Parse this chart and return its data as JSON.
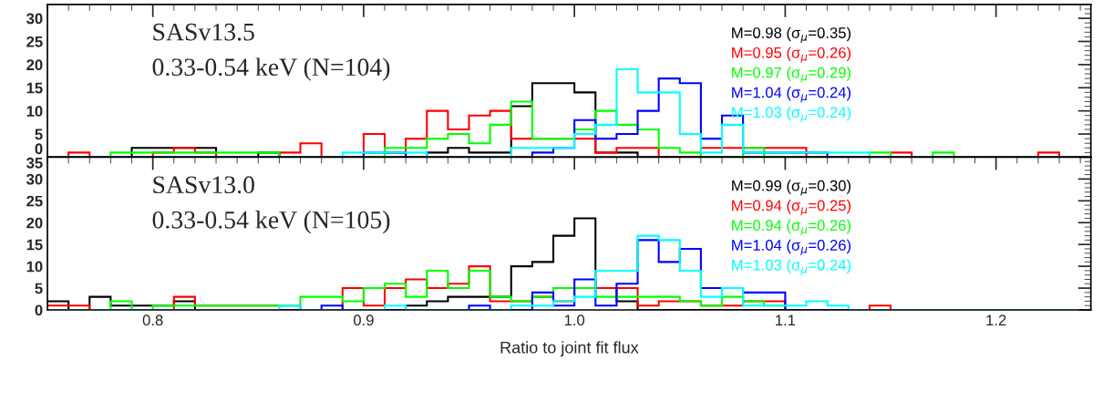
{
  "chart_data": [
    {
      "type": "histogram",
      "title": "SASv13.5",
      "subtitle": "0.33-0.54 keV (N=104)",
      "bins": [
        0.75,
        0.76,
        0.77,
        0.78,
        0.79,
        0.8,
        0.81,
        0.82,
        0.83,
        0.84,
        0.85,
        0.86,
        0.87,
        0.88,
        0.89,
        0.9,
        0.91,
        0.92,
        0.93,
        0.94,
        0.95,
        0.96,
        0.97,
        0.98,
        0.99,
        1.0,
        1.01,
        1.02,
        1.03,
        1.04,
        1.05,
        1.06,
        1.07,
        1.08,
        1.09,
        1.1,
        1.11,
        1.12,
        1.13,
        1.14,
        1.15,
        1.16,
        1.17,
        1.18,
        1.19,
        1.2,
        1.21,
        1.22,
        1.23,
        1.24
      ],
      "xlim": [
        0.75,
        1.245
      ],
      "xticks": [
        0.8,
        0.9,
        1.0,
        1.1,
        1.2
      ],
      "ylim": [
        0,
        33
      ],
      "yticks": [
        0,
        5,
        10,
        15,
        20,
        25,
        30
      ],
      "tick_labels": "y",
      "series": [
        {
          "name": "M=0.98 (σ$_{μ}$=0.35)",
          "color": "#000000",
          "values": [
            0,
            0,
            0,
            0,
            2,
            2,
            2,
            2,
            0,
            0,
            1,
            0,
            0,
            0,
            0,
            0,
            0,
            0,
            1,
            2,
            1,
            1,
            11,
            16,
            16,
            14,
            1,
            1,
            0,
            0,
            0,
            0,
            0,
            0,
            0,
            0,
            0,
            0,
            0,
            0,
            0,
            0,
            0,
            0,
            0,
            0,
            0,
            0,
            0
          ]
        },
        {
          "name": "M=0.95 (σ$_{μ}$=0.26)",
          "color": "#ff0000",
          "values": [
            0,
            1,
            0,
            0,
            0,
            1,
            2,
            1,
            0,
            0,
            0,
            1,
            3,
            0,
            0,
            5,
            1,
            4,
            10,
            6,
            9,
            10,
            4,
            4,
            4,
            4,
            1,
            2,
            2,
            0,
            0,
            2,
            2,
            2,
            2,
            2,
            0,
            0,
            0,
            0,
            1,
            0,
            0,
            0,
            0,
            0,
            0,
            1,
            0
          ]
        },
        {
          "name": "M=0.97 (σ$_{μ}$=0.29)",
          "color": "#00ff00",
          "values": [
            0,
            0,
            0,
            1,
            1,
            1,
            1,
            1,
            1,
            1,
            1,
            0,
            0,
            0,
            0,
            0,
            2,
            2,
            4,
            5,
            3,
            7,
            12,
            4,
            4,
            6,
            10,
            7,
            6,
            2,
            1,
            0,
            0,
            2,
            0,
            0,
            0,
            0,
            0,
            1,
            0,
            0,
            1,
            0,
            0,
            0,
            0,
            0,
            0
          ]
        },
        {
          "name": "M=1.04 (σ$_{μ}$=0.24)",
          "color": "#0000ff",
          "values": [
            0,
            0,
            0,
            0,
            0,
            0,
            0,
            0,
            0,
            0,
            0,
            0,
            0,
            0,
            0,
            1,
            1,
            0,
            0,
            0,
            0,
            0,
            0,
            1,
            2,
            8,
            4,
            5,
            10,
            17,
            16,
            4,
            9,
            1,
            1,
            1,
            1,
            0,
            0,
            0,
            0,
            0,
            0,
            0,
            0,
            0,
            0,
            0,
            0
          ]
        },
        {
          "name": "M=1.03 (σ$_{μ}$=0.24)",
          "color": "#00ffff",
          "values": [
            0,
            0,
            0,
            0,
            0,
            0,
            0,
            0,
            0,
            0,
            0,
            0,
            0,
            0,
            1,
            1,
            1,
            1,
            0,
            0,
            0,
            0,
            2,
            2,
            2,
            5,
            7,
            19,
            14,
            14,
            5,
            1,
            7,
            1,
            1,
            1,
            1,
            1,
            1,
            0,
            0,
            0,
            0,
            0,
            0,
            0,
            0,
            0,
            0
          ]
        }
      ]
    },
    {
      "type": "histogram",
      "title": "SASv13.0",
      "subtitle": "0.33-0.54 keV (N=105)",
      "xlabel": "Ratio to joint fit flux",
      "bins": [
        0.75,
        0.76,
        0.77,
        0.78,
        0.79,
        0.8,
        0.81,
        0.82,
        0.83,
        0.84,
        0.85,
        0.86,
        0.87,
        0.88,
        0.89,
        0.9,
        0.91,
        0.92,
        0.93,
        0.94,
        0.95,
        0.96,
        0.97,
        0.98,
        0.99,
        1.0,
        1.01,
        1.02,
        1.03,
        1.04,
        1.05,
        1.06,
        1.07,
        1.08,
        1.09,
        1.1,
        1.11,
        1.12,
        1.13,
        1.14,
        1.15,
        1.16,
        1.17,
        1.18,
        1.19,
        1.2,
        1.21,
        1.22,
        1.23,
        1.24
      ],
      "xlim": [
        0.75,
        1.245
      ],
      "xticks": [
        0.8,
        0.9,
        {
          "value": 1.0,
          "label": "1.0"
        },
        1.1,
        1.2
      ],
      "ylim": [
        0,
        35
      ],
      "yticks": [
        0,
        5,
        10,
        15,
        20,
        25,
        30,
        35
      ],
      "series": [
        {
          "name": "M=0.99 (σ$_{μ}$=0.30)",
          "color": "#000000",
          "values": [
            2,
            0,
            3,
            1,
            1,
            1,
            2,
            0,
            0,
            0,
            0,
            0,
            0,
            0,
            0,
            0,
            0,
            1,
            2,
            3,
            3,
            3,
            10,
            11,
            17,
            21,
            5,
            2,
            0,
            0,
            0,
            0,
            0,
            0,
            0,
            0,
            0,
            0,
            0,
            0,
            0,
            0,
            0,
            0,
            0,
            0,
            0,
            0,
            0
          ]
        },
        {
          "name": "M=0.94 (σ$_{μ}$=0.25)",
          "color": "#ff0000",
          "values": [
            1,
            1,
            0,
            0,
            0,
            0,
            3,
            1,
            1,
            1,
            1,
            1,
            0,
            0,
            5,
            1,
            5,
            7,
            5,
            6,
            10,
            2,
            2,
            3,
            2,
            5,
            5,
            5,
            1,
            2,
            2,
            1,
            1,
            2,
            2,
            0,
            0,
            0,
            0,
            1,
            0,
            0,
            0,
            0,
            0,
            0,
            0,
            0,
            0
          ]
        },
        {
          "name": "M=0.94 (σ$_{μ}$=0.26)",
          "color": "#00ff00",
          "values": [
            0,
            0,
            0,
            2,
            0,
            1,
            1,
            1,
            1,
            1,
            1,
            1,
            3,
            3,
            2,
            5,
            6,
            3,
            9,
            5,
            9,
            3,
            2,
            3,
            5,
            5,
            3,
            3,
            3,
            3,
            2,
            1,
            3,
            2,
            1,
            0,
            0,
            0,
            0,
            0,
            0,
            0,
            0,
            0,
            0,
            0,
            0,
            0,
            0
          ]
        },
        {
          "name": "M=1.04 (σ$_{μ}$=0.26)",
          "color": "#0000ff",
          "values": [
            0,
            0,
            0,
            0,
            0,
            0,
            0,
            0,
            0,
            0,
            0,
            0,
            0,
            1,
            0,
            0,
            0,
            0,
            0,
            0,
            1,
            0,
            0,
            4,
            1,
            7,
            1,
            6,
            16,
            11,
            14,
            5,
            5,
            4,
            4,
            0,
            0,
            0,
            0,
            0,
            0,
            0,
            0,
            0,
            0,
            0,
            0,
            0,
            0
          ]
        },
        {
          "name": "M=1.03 (σ$_{μ}$=0.24)",
          "color": "#00ffff",
          "values": [
            0,
            0,
            0,
            0,
            0,
            0,
            0,
            0,
            0,
            0,
            0,
            1,
            0,
            0,
            0,
            0,
            1,
            0,
            0,
            0,
            0,
            0,
            1,
            1,
            2,
            3,
            9,
            9,
            17,
            16,
            9,
            3,
            5,
            1,
            1,
            1,
            2,
            1,
            0,
            0,
            0,
            0,
            0,
            0,
            0,
            0,
            0,
            0,
            0
          ]
        }
      ]
    }
  ]
}
